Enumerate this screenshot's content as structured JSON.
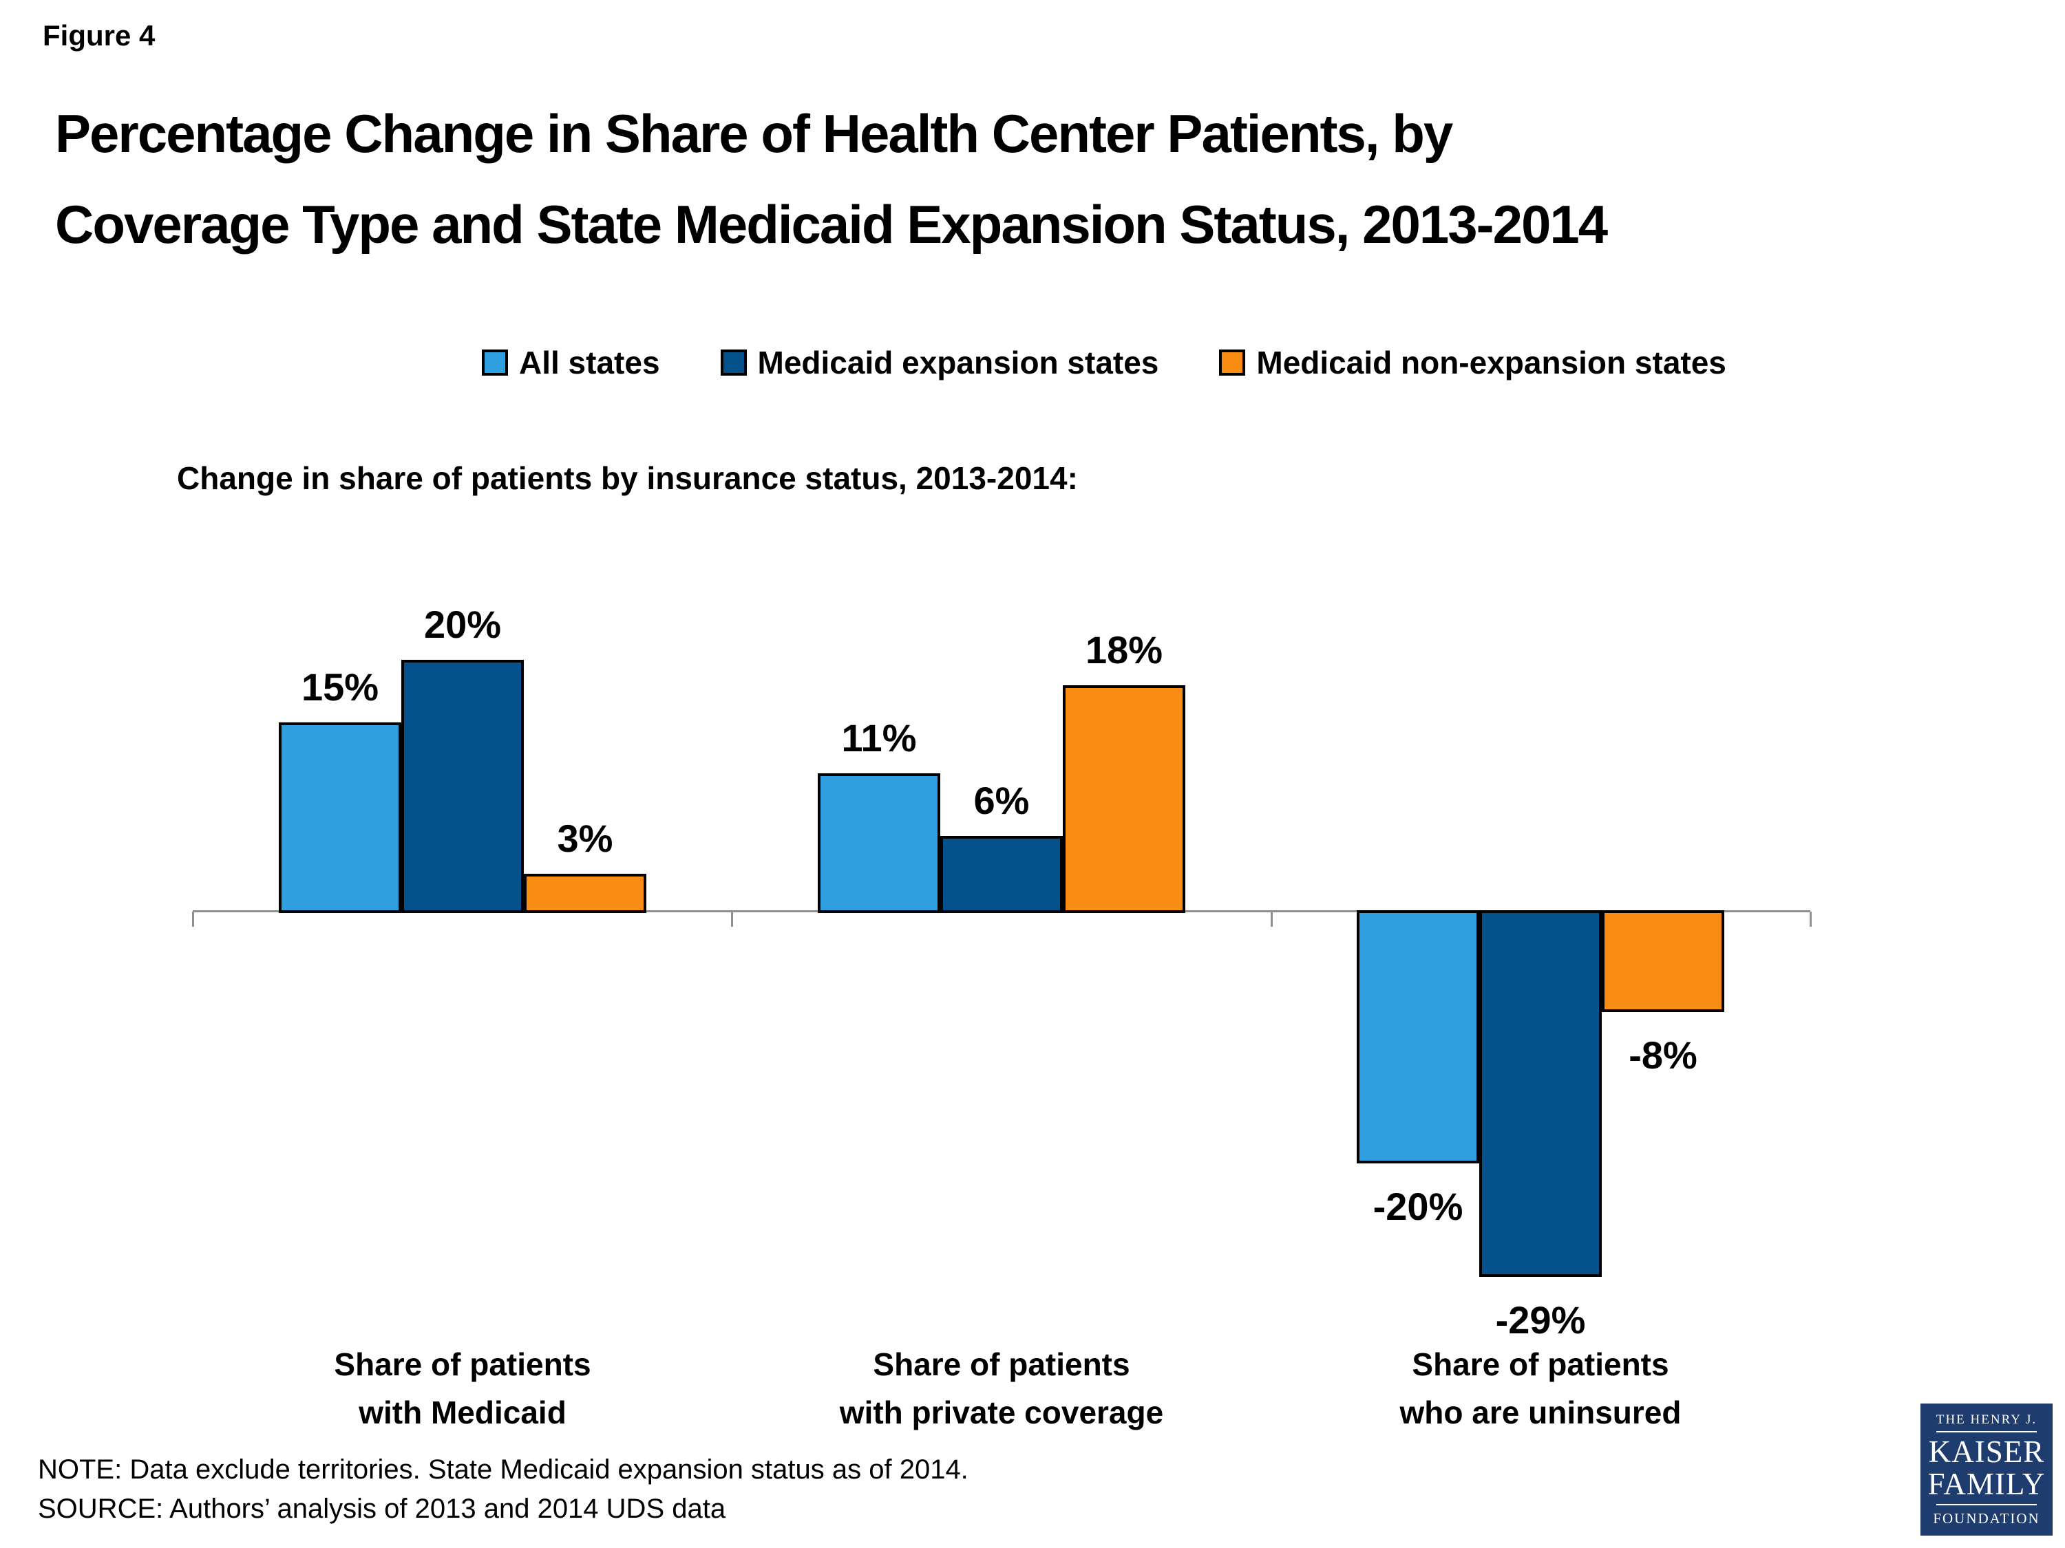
{
  "page": {
    "figure_label": "Figure 4",
    "title_line1": "Percentage Change in Share of Health Center Patients, by",
    "title_line2": "Coverage Type and State Medicaid Expansion Status, 2013-2014",
    "note": "NOTE: Data exclude territories. State Medicaid expansion status as of 2014.",
    "source": "SOURCE: Authors’ analysis of 2013 and 2014 UDS data"
  },
  "legend": {
    "items": [
      {
        "label": "All states",
        "color": "#2F9FE0"
      },
      {
        "label": "Medicaid expansion states",
        "color": "#04518C"
      },
      {
        "label": "Medicaid non-expansion states",
        "color": "#F98D13"
      }
    ]
  },
  "chart_data": {
    "type": "bar",
    "subtitle": "Change in share of patients by insurance status, 2013-2014:",
    "categories": [
      {
        "line1": "Share of patients",
        "line2": "with Medicaid"
      },
      {
        "line1": "Share of patients",
        "line2": "with private coverage"
      },
      {
        "line1": "Share of patients",
        "line2": "who are uninsured"
      }
    ],
    "series": [
      {
        "name": "All states",
        "color": "#2F9FE0",
        "values": [
          15,
          11,
          -20
        ]
      },
      {
        "name": "Medicaid expansion states",
        "color": "#04518C",
        "values": [
          20,
          6,
          -29
        ]
      },
      {
        "name": "Medicaid non-expansion states",
        "color": "#F98D13",
        "values": [
          3,
          18,
          -8
        ]
      }
    ],
    "value_labels": [
      "15%",
      "20%",
      "3%",
      "11%",
      "6%",
      "18%",
      "-20%",
      "-29%",
      "-8%"
    ],
    "unit": "%",
    "ylim": [
      -29,
      20
    ],
    "axis_color": "#909090",
    "grid": false,
    "legend_position": "top"
  },
  "logo": {
    "line1": "THE HENRY J.",
    "line2": "KAISER",
    "line3": "FAMILY",
    "line4": "FOUNDATION",
    "bg_color": "#1E3C6E"
  }
}
